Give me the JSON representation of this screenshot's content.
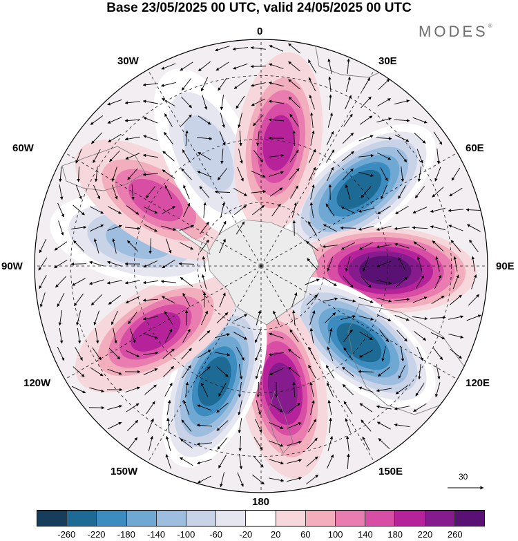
{
  "title": "Base 23/05/2025 00 UTC, valid 24/05/2025 00 UTC",
  "brand": "MODES",
  "brand_mark": "®",
  "longitude_labels": {
    "lon_0": "0",
    "lon_30e": "30E",
    "lon_60e": "60E",
    "lon_90e": "90E",
    "lon_120e": "120E",
    "lon_150e": "150E",
    "lon_180": "180",
    "lon_150w": "150W",
    "lon_120w": "120W",
    "lon_90w": "90W",
    "lon_60w": "60W",
    "lon_30w": "30W"
  },
  "reference_vector": "30",
  "colorbar": {
    "colors": [
      "#163e5c",
      "#1d6a94",
      "#3d8cc0",
      "#6fa8d2",
      "#9ebedf",
      "#c9d3e8",
      "#e6e6f1",
      "#ffffff",
      "#f6d7dc",
      "#f3aebd",
      "#ea7db0",
      "#d74ea4",
      "#b5229a",
      "#861b8d",
      "#5a1174"
    ],
    "ticks": [
      "-260",
      "-220",
      "-180",
      "-140",
      "-100",
      "-60",
      "-20",
      "20",
      "60",
      "100",
      "140",
      "180",
      "220",
      "260"
    ]
  },
  "anomaly_centers": [
    {
      "name": "center-60e-negative",
      "lon_deg": 52,
      "sign": "negative",
      "magnitude": 260
    },
    {
      "name": "center-90e-positive",
      "lon_deg": 92,
      "sign": "positive",
      "magnitude": 260
    },
    {
      "name": "center-125e-negative",
      "lon_deg": 128,
      "sign": "negative",
      "magnitude": 260
    },
    {
      "name": "center-165e-positive",
      "lon_deg": 170,
      "sign": "positive",
      "magnitude": 240
    },
    {
      "name": "center-150w-negative",
      "lon_deg": -158,
      "sign": "negative",
      "magnitude": 240
    },
    {
      "name": "center-120w-positive",
      "lon_deg": -122,
      "sign": "positive",
      "magnitude": 200
    },
    {
      "name": "center-80w-negative",
      "lon_deg": -78,
      "sign": "negative",
      "magnitude": 140
    },
    {
      "name": "center-55w-positive",
      "lon_deg": -58,
      "sign": "positive",
      "magnitude": 160
    },
    {
      "name": "center-25w-negative",
      "lon_deg": -25,
      "sign": "negative",
      "magnitude": 100
    },
    {
      "name": "center-10e-positive",
      "lon_deg": 8,
      "sign": "positive",
      "magnitude": 200
    }
  ]
}
